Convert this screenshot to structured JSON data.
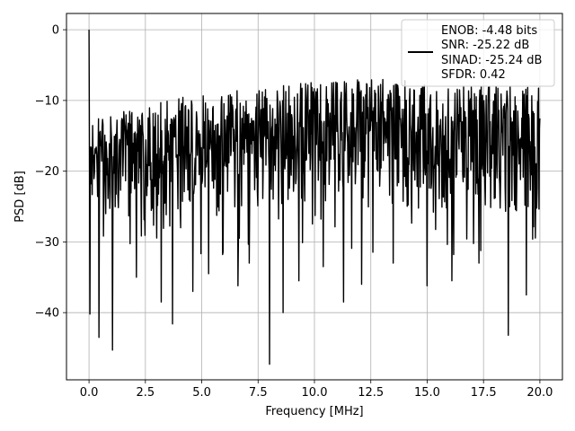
{
  "chart_data": {
    "type": "line",
    "title": "",
    "xlabel": "Frequency [MHz]",
    "ylabel": "PSD [dB]",
    "xlim": [
      -1.0,
      21.0
    ],
    "ylim": [
      -49.5,
      2.3
    ],
    "grid": true,
    "legend_position": "top-right",
    "xticks": [
      {
        "value": 0.0,
        "label": "0.0"
      },
      {
        "value": 2.5,
        "label": "2.5"
      },
      {
        "value": 5.0,
        "label": "5.0"
      },
      {
        "value": 7.5,
        "label": "7.5"
      },
      {
        "value": 10.0,
        "label": "10.0"
      },
      {
        "value": 12.5,
        "label": "12.5"
      },
      {
        "value": 15.0,
        "label": "15.0"
      },
      {
        "value": 17.5,
        "label": "17.5"
      },
      {
        "value": 20.0,
        "label": "20.0"
      }
    ],
    "yticks": [
      {
        "value": 0,
        "label": "0"
      },
      {
        "value": -10,
        "label": "−10"
      },
      {
        "value": -20,
        "label": "−20"
      },
      {
        "value": -30,
        "label": "−30"
      },
      {
        "value": -40,
        "label": "−40"
      }
    ],
    "legend": [
      "ENOB: -4.48 bits",
      "SNR: -25.22 dB",
      "SINAD: -25.24 dB",
      "SFDR: 0.42"
    ],
    "series": [
      {
        "color": "#000000",
        "x_range": [
          0,
          20
        ],
        "points": 1000,
        "peak": {
          "x": 0.0,
          "y": 0.0
        },
        "envelope_top": [
          [
            0,
            -13
          ],
          [
            2,
            -11
          ],
          [
            5,
            -9
          ],
          [
            8,
            -8
          ],
          [
            11,
            -7
          ],
          [
            14,
            -7
          ],
          [
            17,
            -8
          ],
          [
            20,
            -8
          ]
        ],
        "envelope_bottom": [
          [
            0,
            -27
          ],
          [
            5,
            -26
          ],
          [
            10,
            -25
          ],
          [
            15,
            -26
          ],
          [
            20,
            -27
          ]
        ],
        "dips": [
          {
            "x": 0.04,
            "y": -40.2
          },
          {
            "x": 0.45,
            "y": -43.5
          },
          {
            "x": 1.05,
            "y": -45.3
          },
          {
            "x": 2.1,
            "y": -35.0
          },
          {
            "x": 3.2,
            "y": -38.5
          },
          {
            "x": 3.7,
            "y": -41.6
          },
          {
            "x": 4.6,
            "y": -37.0
          },
          {
            "x": 5.3,
            "y": -34.5
          },
          {
            "x": 6.6,
            "y": -36.2
          },
          {
            "x": 7.1,
            "y": -33.0
          },
          {
            "x": 8.0,
            "y": -47.3
          },
          {
            "x": 8.6,
            "y": -40.0
          },
          {
            "x": 9.3,
            "y": -35.5
          },
          {
            "x": 10.4,
            "y": -33.5
          },
          {
            "x": 11.3,
            "y": -38.5
          },
          {
            "x": 12.1,
            "y": -36.0
          },
          {
            "x": 13.5,
            "y": -33.0
          },
          {
            "x": 15.0,
            "y": -36.2
          },
          {
            "x": 16.1,
            "y": -35.5
          },
          {
            "x": 17.3,
            "y": -33.0
          },
          {
            "x": 18.6,
            "y": -43.2
          },
          {
            "x": 19.4,
            "y": -37.5
          }
        ]
      }
    ]
  }
}
